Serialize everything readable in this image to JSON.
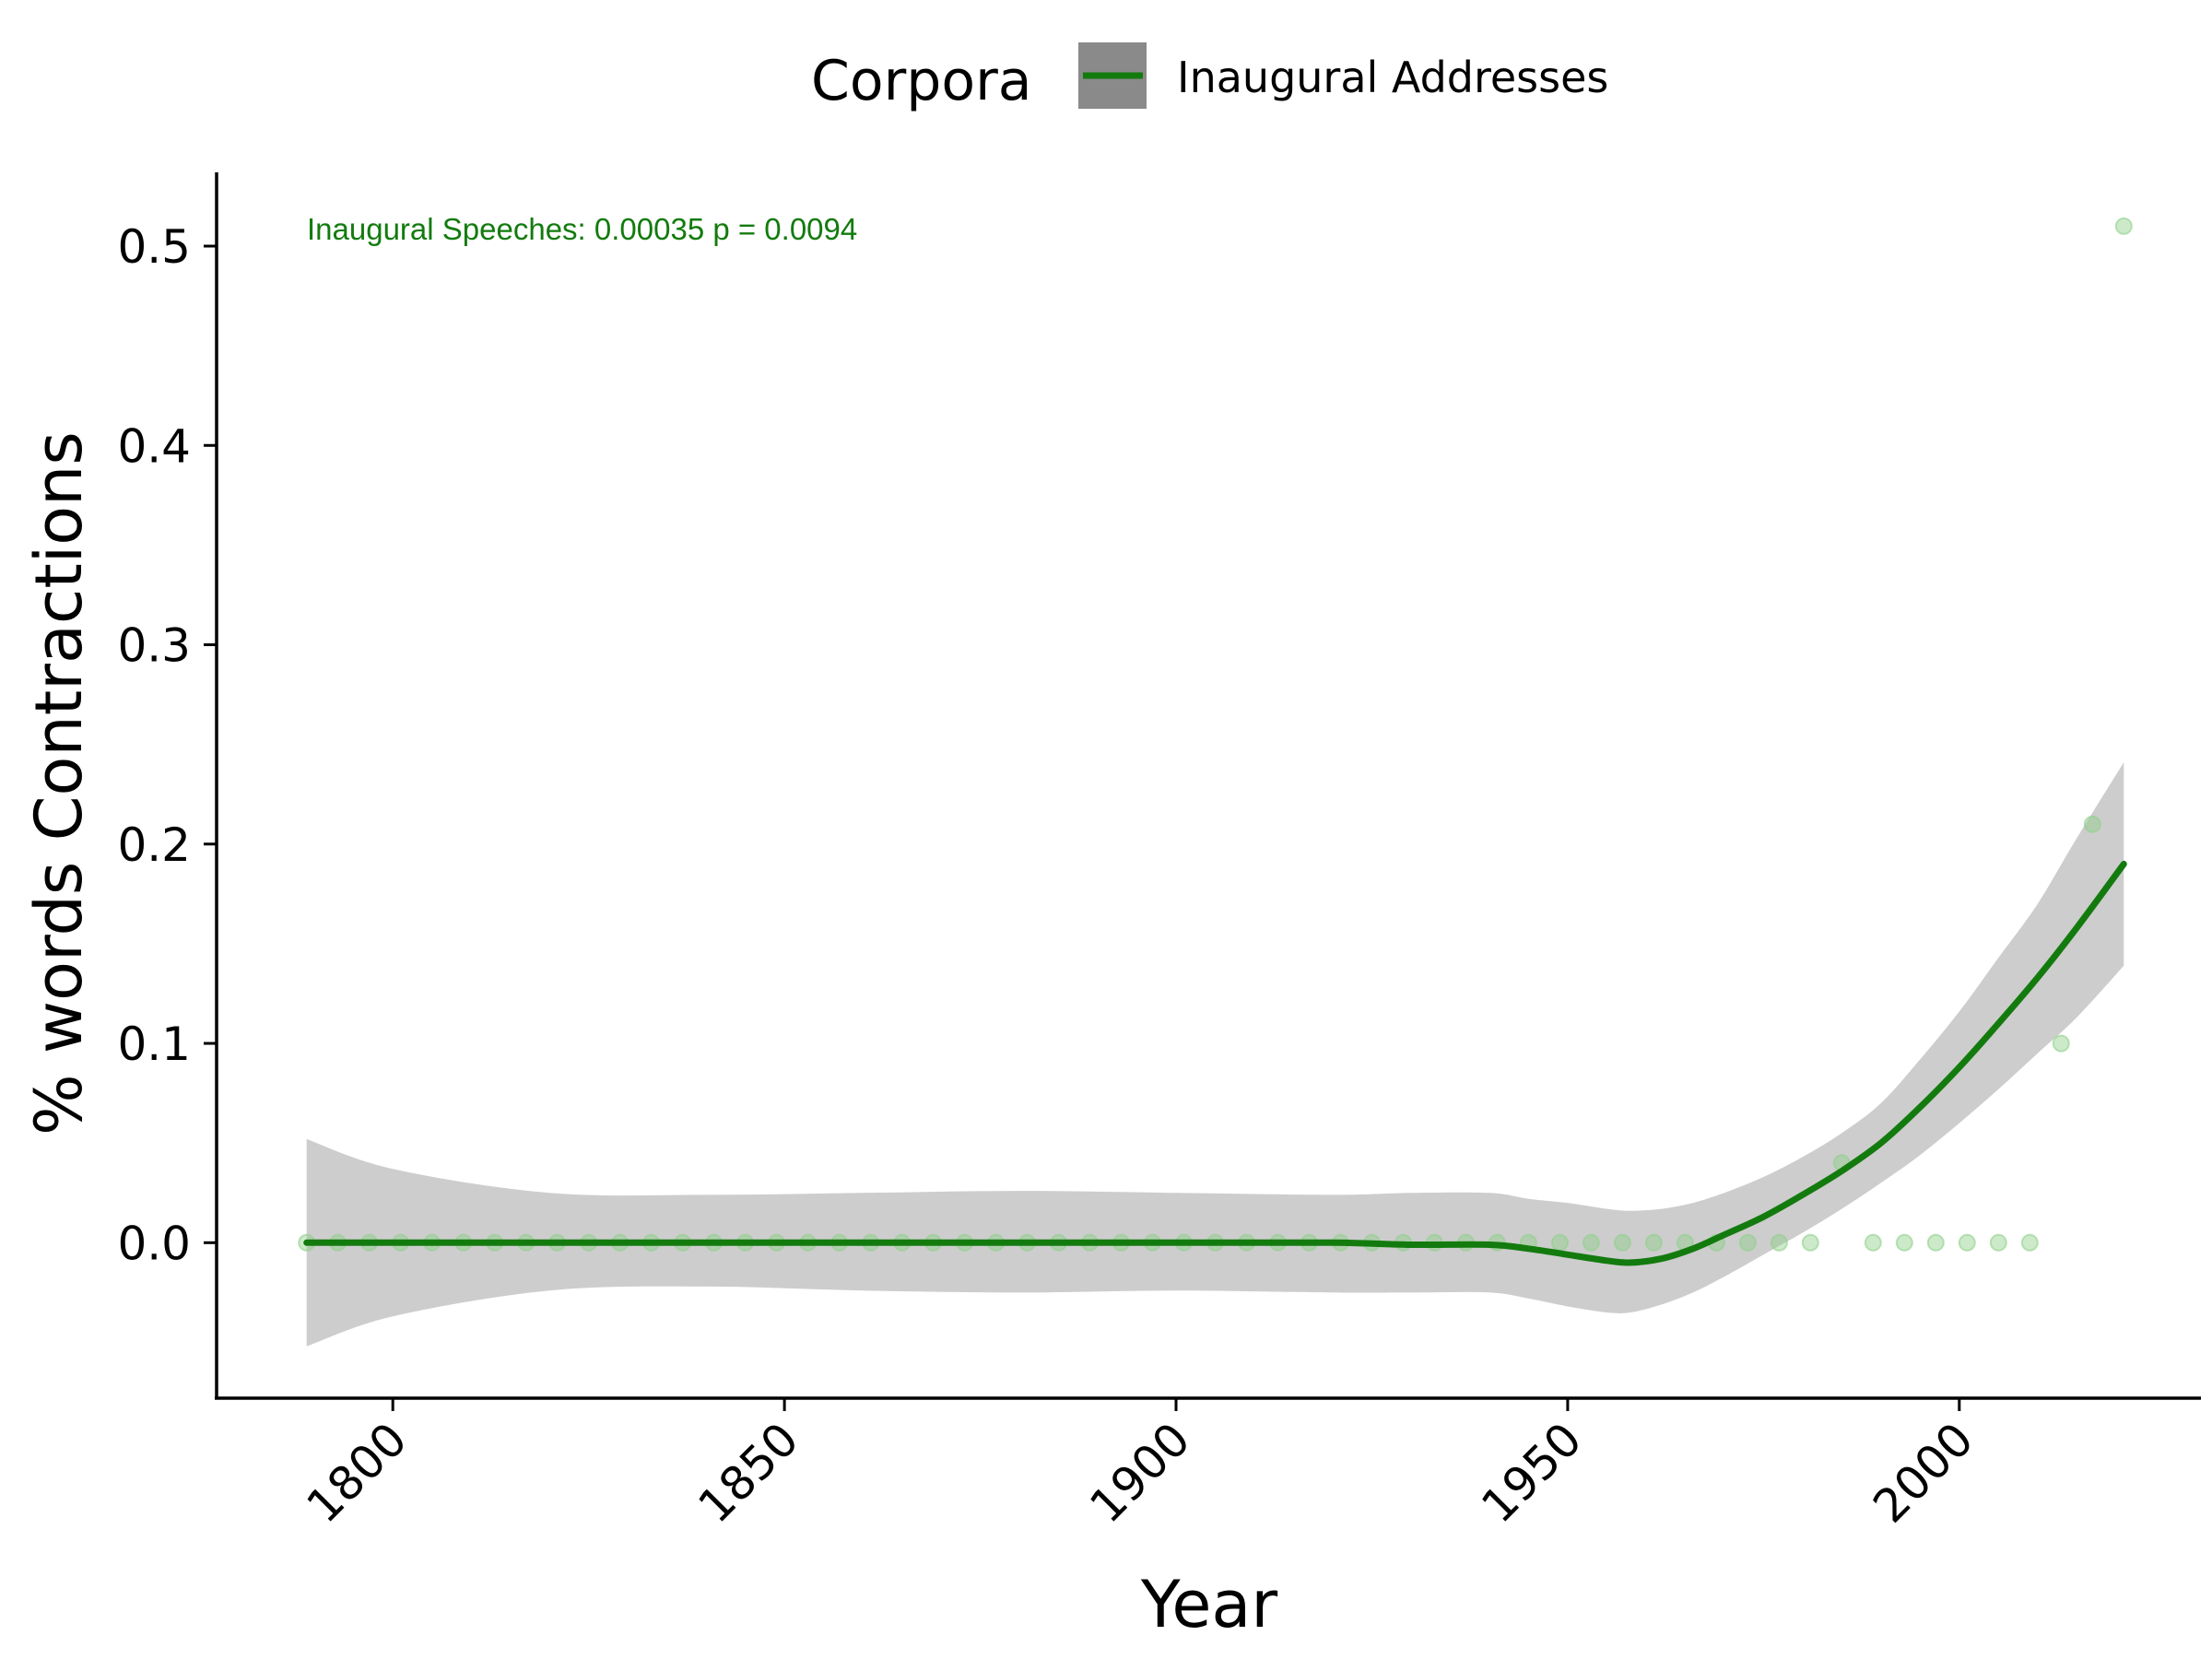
{
  "chart_data": {
    "type": "line",
    "xlabel": "Year",
    "ylabel": "% words Contractions",
    "xlim": [
      1777.5,
      2030.5
    ],
    "ylim": [
      -0.078,
      0.537
    ],
    "x_ticks": [
      1800,
      1850,
      1900,
      1950,
      2000
    ],
    "y_ticks": [
      0.0,
      0.1,
      0.2,
      0.3,
      0.4,
      0.5
    ],
    "y_tick_labels": [
      "0.0",
      "0.1",
      "0.2",
      "0.3",
      "0.4",
      "0.5"
    ],
    "legend": {
      "title": "Corpora",
      "placement": "top",
      "entries": [
        "Inaugural Addresses"
      ]
    },
    "annotation": "Inaugural Speeches:  0.00035  p =  0.0094",
    "colors": {
      "line": "#137b0e",
      "points": "#8fd08a",
      "band": "#cdcdcd",
      "annotation": "#137b0e",
      "legend_key_bg": "#8a8a8a"
    },
    "series": [
      {
        "name": "Inaugural Addresses",
        "kind": "points",
        "x": [
          1789,
          1793,
          1797,
          1801,
          1805,
          1809,
          1813,
          1817,
          1821,
          1825,
          1829,
          1833,
          1837,
          1841,
          1845,
          1849,
          1853,
          1857,
          1861,
          1865,
          1869,
          1873,
          1877,
          1881,
          1885,
          1889,
          1893,
          1897,
          1901,
          1905,
          1909,
          1913,
          1917,
          1921,
          1925,
          1929,
          1933,
          1937,
          1941,
          1945,
          1949,
          1953,
          1957,
          1961,
          1965,
          1969,
          1973,
          1977,
          1981,
          1985,
          1989,
          1993,
          1997,
          2001,
          2005,
          2009,
          2013,
          2017,
          2021
        ],
        "y": [
          0,
          0,
          0,
          0,
          0,
          0,
          0,
          0,
          0,
          0,
          0,
          0,
          0,
          0,
          0,
          0,
          0,
          0,
          0,
          0,
          0,
          0,
          0,
          0,
          0,
          0,
          0,
          0,
          0,
          0,
          0,
          0,
          0,
          0,
          0,
          0,
          0,
          0,
          0,
          0,
          0,
          0,
          0,
          0,
          0,
          0,
          0,
          0,
          0,
          0.04,
          0,
          0,
          0,
          0,
          0,
          0,
          0.1,
          0.21,
          0.51
        ]
      },
      {
        "name": "Inaugural Addresses",
        "kind": "smooth",
        "x": [
          1789,
          1800,
          1820,
          1840,
          1860,
          1880,
          1900,
          1920,
          1930,
          1940,
          1945,
          1950,
          1955,
          1958,
          1962,
          1966,
          1970,
          1975,
          1980,
          1985,
          1990,
          1995,
          2000,
          2005,
          2010,
          2015,
          2021
        ],
        "y": [
          0,
          0,
          0,
          0,
          0,
          0,
          0,
          0,
          -0.001,
          -0.001,
          -0.003,
          -0.006,
          -0.009,
          -0.01,
          -0.008,
          -0.003,
          0.004,
          0.013,
          0.024,
          0.036,
          0.05,
          0.068,
          0.088,
          0.11,
          0.133,
          0.158,
          0.19
        ],
        "lower": [
          -0.052,
          -0.037,
          -0.024,
          -0.022,
          -0.024,
          -0.025,
          -0.024,
          -0.025,
          -0.025,
          -0.025,
          -0.028,
          -0.032,
          -0.035,
          -0.035,
          -0.031,
          -0.025,
          -0.017,
          -0.006,
          0.005,
          0.017,
          0.03,
          0.044,
          0.06,
          0.077,
          0.095,
          0.113,
          0.139
        ],
        "upper": [
          0.052,
          0.037,
          0.025,
          0.024,
          0.025,
          0.026,
          0.025,
          0.024,
          0.025,
          0.025,
          0.022,
          0.02,
          0.017,
          0.016,
          0.017,
          0.02,
          0.025,
          0.033,
          0.043,
          0.055,
          0.07,
          0.092,
          0.116,
          0.143,
          0.17,
          0.203,
          0.241
        ]
      }
    ]
  }
}
